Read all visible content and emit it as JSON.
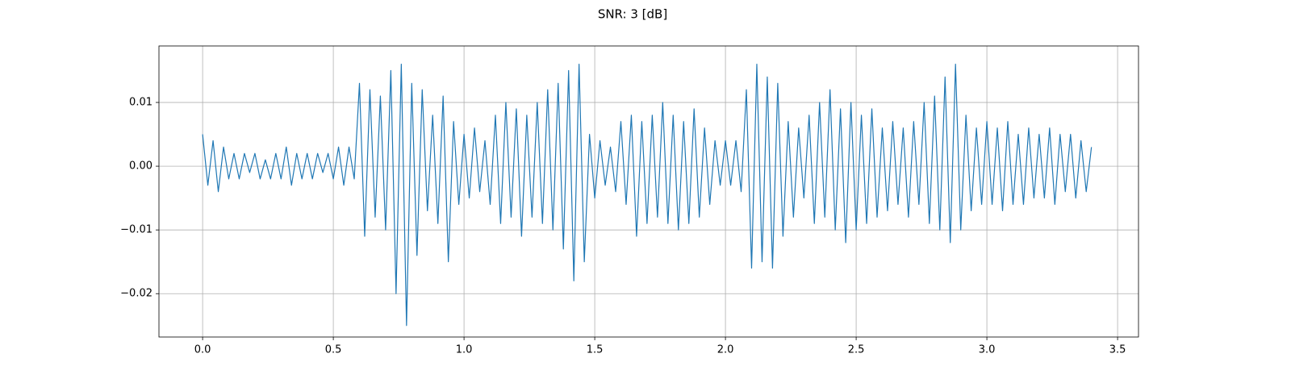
{
  "chart_data": {
    "type": "line",
    "title": "SNR: 3 [dB]",
    "color": "#1f77b4",
    "grid": true,
    "xlim": [
      -0.167,
      3.58
    ],
    "xticks": [
      {
        "value": 0,
        "label": "0.0"
      },
      0.5,
      {
        "value": 1,
        "label": "1.0"
      },
      1.5,
      {
        "value": 2,
        "label": "2.0"
      },
      2.5,
      {
        "value": 3,
        "label": "3.0"
      },
      3.5
    ],
    "ylim": [
      -0.0268,
      0.01886
    ],
    "yticks": [
      {
        "value": -0.02,
        "label": "−0.02"
      },
      {
        "value": -0.01,
        "label": "−0.01"
      },
      {
        "value": 0,
        "label": "0.00"
      },
      0.01
    ],
    "x": [
      0,
      0.02,
      0.04,
      0.06,
      0.08,
      0.1,
      0.12,
      0.14,
      0.16,
      0.18,
      0.2,
      0.22,
      0.24,
      0.26,
      0.28,
      0.3,
      0.32,
      0.34,
      0.36,
      0.38,
      0.4,
      0.42,
      0.44,
      0.46,
      0.48,
      0.5,
      0.52,
      0.54,
      0.56,
      0.58,
      0.6,
      0.62,
      0.64,
      0.66,
      0.68,
      0.7,
      0.72,
      0.74,
      0.76,
      0.78,
      0.8,
      0.82,
      0.84,
      0.86,
      0.88,
      0.9,
      0.92,
      0.94,
      0.96,
      0.98,
      1,
      1.02,
      1.04,
      1.06,
      1.08,
      1.1,
      1.12,
      1.14,
      1.16,
      1.18,
      1.2,
      1.22,
      1.24,
      1.26,
      1.28,
      1.3,
      1.32,
      1.34,
      1.36,
      1.38,
      1.4,
      1.42,
      1.44,
      1.46,
      1.48,
      1.5,
      1.52,
      1.54,
      1.56,
      1.58,
      1.6,
      1.62,
      1.64,
      1.66,
      1.68,
      1.7,
      1.72,
      1.74,
      1.76,
      1.78,
      1.8,
      1.82,
      1.84,
      1.86,
      1.88,
      1.9,
      1.92,
      1.94,
      1.96,
      1.98,
      2,
      2.02,
      2.04,
      2.06,
      2.08,
      2.1,
      2.12,
      2.14,
      2.16,
      2.18,
      2.2,
      2.22,
      2.24,
      2.26,
      2.28,
      2.3,
      2.32,
      2.34,
      2.36,
      2.38,
      2.4,
      2.42,
      2.44,
      2.46,
      2.48,
      2.5,
      2.52,
      2.54,
      2.56,
      2.58,
      2.6,
      2.62,
      2.64,
      2.66,
      2.68,
      2.7,
      2.72,
      2.74,
      2.76,
      2.78,
      2.8,
      2.82,
      2.84,
      2.86,
      2.88,
      2.9,
      2.92,
      2.94,
      2.96,
      2.98,
      3,
      3.02,
      3.04,
      3.06,
      3.08,
      3.1,
      3.12,
      3.14,
      3.16,
      3.18,
      3.2,
      3.22,
      3.24,
      3.26,
      3.28,
      3.3,
      3.32,
      3.34,
      3.36,
      3.38,
      3.4
    ],
    "values": [
      0.005,
      -0.003,
      0.004,
      -0.004,
      0.003,
      -0.002,
      0.002,
      -0.002,
      0.002,
      -0.001,
      0.002,
      -0.002,
      0.001,
      -0.002,
      0.002,
      -0.002,
      0.003,
      -0.003,
      0.002,
      -0.002,
      0.002,
      -0.002,
      0.002,
      -0.001,
      0.002,
      -0.002,
      0.003,
      -0.003,
      0.003,
      -0.002,
      0.013,
      -0.011,
      0.012,
      -0.008,
      0.011,
      -0.01,
      0.015,
      -0.02,
      0.016,
      -0.025,
      0.013,
      -0.014,
      0.012,
      -0.007,
      0.008,
      -0.009,
      0.011,
      -0.015,
      0.007,
      -0.006,
      0.005,
      -0.005,
      0.006,
      -0.004,
      0.004,
      -0.006,
      0.008,
      -0.009,
      0.01,
      -0.008,
      0.009,
      -0.011,
      0.008,
      -0.008,
      0.01,
      -0.009,
      0.012,
      -0.01,
      0.013,
      -0.013,
      0.015,
      -0.018,
      0.016,
      -0.015,
      0.005,
      -0.005,
      0.004,
      -0.003,
      0.003,
      -0.004,
      0.007,
      -0.006,
      0.008,
      -0.011,
      0.007,
      -0.009,
      0.008,
      -0.008,
      0.01,
      -0.009,
      0.008,
      -0.01,
      0.007,
      -0.009,
      0.009,
      -0.008,
      0.006,
      -0.006,
      0.004,
      -0.003,
      0.004,
      -0.003,
      0.004,
      -0.004,
      0.012,
      -0.016,
      0.016,
      -0.015,
      0.014,
      -0.016,
      0.013,
      -0.011,
      0.007,
      -0.008,
      0.006,
      -0.005,
      0.008,
      -0.009,
      0.01,
      -0.008,
      0.012,
      -0.01,
      0.009,
      -0.012,
      0.01,
      -0.01,
      0.008,
      -0.009,
      0.009,
      -0.008,
      0.006,
      -0.007,
      0.007,
      -0.006,
      0.006,
      -0.008,
      0.007,
      -0.006,
      0.01,
      -0.009,
      0.011,
      -0.01,
      0.014,
      -0.012,
      0.016,
      -0.01,
      0.008,
      -0.007,
      0.006,
      -0.006,
      0.007,
      -0.006,
      0.006,
      -0.007,
      0.007,
      -0.006,
      0.005,
      -0.006,
      0.006,
      -0.005,
      0.005,
      -0.005,
      0.006,
      -0.006,
      0.005,
      -0.004,
      0.005,
      -0.005,
      0.004,
      -0.004,
      0.003
    ]
  }
}
